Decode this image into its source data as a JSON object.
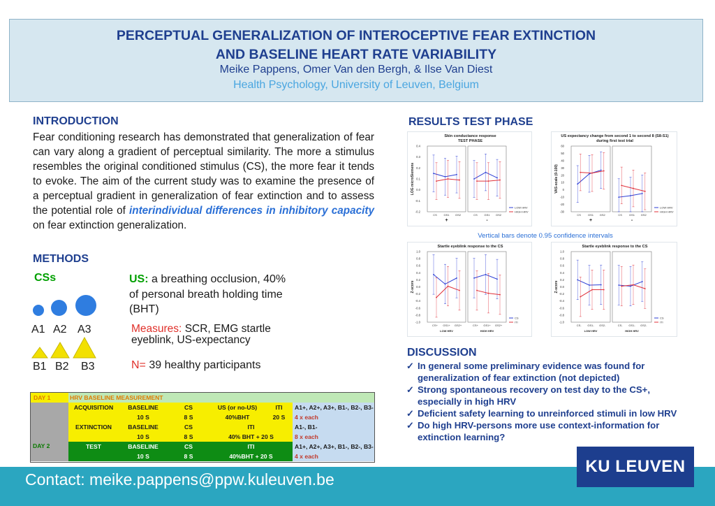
{
  "header": {
    "title_line1": "PERCEPTUAL GENERALIZATION OF INTEROCEPTIVE FEAR EXTINCTION",
    "title_line2": "AND BASELINE HEART RATE VARIABILITY",
    "authors": "Meike Pappens,  Omer Van den Bergh, & Ilse Van Diest",
    "affiliation": "Health Psychology, University of Leuven, Belgium"
  },
  "introduction": {
    "title": "INTRODUCTION",
    "text_before": "Fear conditioning research has demonstrated that generalization of fear can vary along a gradient of perceptual similarity. The more a stimulus resembles the original conditioned stimulus (CS), the more fear it tends to evoke. The aim of the current study was to examine the presence of a perceptual gradient in generalization of fear extinction and to assess the potential role of",
    "emphasis": "interindividual differences in inhibitory capacity",
    "text_after": "on fear extinction generalization."
  },
  "methods": {
    "title": "METHODS",
    "cs_label": "CSs",
    "a_labels": [
      "A1",
      "A2",
      "A3"
    ],
    "b_labels": [
      "B1",
      "B2",
      "B3"
    ],
    "us_label": "US:",
    "us_text": "a breathing occlusion, 40% of personal breath holding time (BHT)",
    "measures_label": "Measures:",
    "measures_text": "SCR, EMG startle eyeblink, US-expectancy",
    "n_label": "N=",
    "n_text": "39 healthy participants",
    "colors": {
      "green": "#00a000",
      "red": "#e0302a",
      "blue": "#2f7de0",
      "yellow": "#f2e000"
    }
  },
  "schedule": {
    "day1": "DAY 1",
    "hrv_title": "HRV BASELINE MEASUREMENT",
    "acq_row1": [
      "ACQUISITION",
      "BASELINE",
      "CS",
      "US (or no-US)",
      "ITI"
    ],
    "acq_row2": [
      "10 S",
      "8 S",
      "40%BHT",
      "20 S"
    ],
    "acq_stim": "A1+, A2+, A3+, B1-, B2-, B3-",
    "acq_each": "4 x each",
    "ext_row1": [
      "EXTINCTION",
      "BASELINE",
      "CS",
      "ITI"
    ],
    "ext_row2": [
      "10 S",
      "8 S",
      "40% BHT + 20 S"
    ],
    "ext_stim": "A1-, B1-",
    "ext_each": "8 x each",
    "day2": "DAY 2",
    "test_row1": [
      "TEST",
      "BASELINE",
      "CS",
      "ITI"
    ],
    "test_row2": [
      "10 S",
      "8 S",
      "40%BHT + 20 S"
    ],
    "test_stim": "A1+, A2+, A3+, B1-, B2-, B3-",
    "test_each": "4 x each"
  },
  "results": {
    "title": "RESULTS TEST PHASE",
    "note": "Vertical bars denote 0.95 confidence intervals"
  },
  "chart_data": [
    {
      "type": "line",
      "title": "Skin conductance response",
      "subtitle": "TEST PHASE",
      "ylabel": "LOG microSiemens",
      "ylim": [
        -0.2,
        0.4
      ],
      "yticks": [
        "0.4",
        "0.3",
        "0.2",
        "0.1",
        "0.0",
        "-0.1",
        "-0.2"
      ],
      "panels": [
        {
          "categories": [
            "CS",
            "GS1",
            "GS2"
          ],
          "label": "+",
          "series": [
            {
              "name": "LOW HRV",
              "values": [
                0.15,
                0.12,
                0.14
              ]
            },
            {
              "name": "HIGH HRV",
              "values": [
                0.08,
                0.1,
                0.09
              ]
            }
          ]
        },
        {
          "categories": [
            "CS",
            "GS1",
            "GS2"
          ],
          "label": "-",
          "series": [
            {
              "name": "LOW HRV",
              "values": [
                0.1,
                0.16,
                0.11
              ]
            },
            {
              "name": "HIGH HRV",
              "values": [
                0.08,
                0.08,
                0.09
              ]
            }
          ]
        }
      ],
      "legend": [
        "LOW HRV",
        "HIGH HRV"
      ]
    },
    {
      "type": "line",
      "title": "US expectancy change from second 1 to second 8 (S8-S1)",
      "subtitle": "during first test trial",
      "ylabel": "VAS-scale (0-100)",
      "ylim": [
        -30,
        60
      ],
      "yticks": [
        "60",
        "50",
        "40",
        "30",
        "20",
        "10",
        "0",
        "-10",
        "-20",
        "-30"
      ],
      "panels": [
        {
          "categories": [
            "CS",
            "GS1",
            "GS2"
          ],
          "label": "+",
          "series": [
            {
              "name": "LOW HRV",
              "values": [
                8,
                22,
                27
              ]
            },
            {
              "name": "HIGH HRV",
              "values": [
                24,
                23,
                26
              ]
            }
          ]
        },
        {
          "categories": [
            "CS",
            "GS1",
            "GS2"
          ],
          "label": "-",
          "series": [
            {
              "name": "LOW HRV",
              "values": [
                -10,
                -8,
                -5
              ]
            },
            {
              "name": "HIGH HRV",
              "values": [
                6,
                2,
                -2
              ]
            }
          ]
        }
      ],
      "legend": [
        "LOW HRV",
        "HIGH HRV"
      ]
    },
    {
      "type": "line",
      "title": "Startle eyeblink response to the CS",
      "ylabel": "Z-score",
      "ylim": [
        -1.0,
        1.0
      ],
      "yticks": [
        "1.0",
        "0.8",
        "0.6",
        "0.4",
        "0.2",
        "0.0",
        "-0.2",
        "-0.4",
        "-0.6",
        "-0.8",
        "-1.0"
      ],
      "panels": [
        {
          "categories": [
            "CS+",
            "GS1+",
            "GS2+"
          ],
          "label": "LOW HRV",
          "series": [
            {
              "name": "CS",
              "values": [
                0.35,
                0.08,
                0.25
              ]
            },
            {
              "name": "ITI",
              "values": [
                -0.3,
                0.02,
                -0.1
              ]
            }
          ]
        },
        {
          "categories": [
            "CS+",
            "GS1+",
            "GS2+"
          ],
          "label": "HIGH HRV",
          "series": [
            {
              "name": "CS",
              "values": [
                0.25,
                0.35,
                0.22
              ]
            },
            {
              "name": "ITI",
              "values": [
                -0.1,
                -0.18,
                -0.22
              ]
            }
          ]
        }
      ],
      "legend": [
        "CS",
        "ITI"
      ]
    },
    {
      "type": "line",
      "title": "Startle eyeblink response to the CS",
      "ylabel": "Z-score",
      "ylim": [
        -1.0,
        1.0
      ],
      "yticks": [
        "1.0",
        "0.8",
        "0.6",
        "0.4",
        "0.2",
        "0.0",
        "-0.2",
        "-0.4",
        "-0.6",
        "-0.8",
        "-1.0"
      ],
      "panels": [
        {
          "categories": [
            "CS-",
            "GS1-",
            "GS2-"
          ],
          "label": "LOW HRV",
          "series": [
            {
              "name": "CS",
              "values": [
                0.2,
                0.05,
                0.06
              ]
            },
            {
              "name": "ITI",
              "values": [
                -0.28,
                -0.08,
                -0.08
              ]
            }
          ]
        },
        {
          "categories": [
            "CS-",
            "GS1-",
            "GS2-"
          ],
          "label": "HIGH HRV",
          "series": [
            {
              "name": "CS",
              "values": [
                0.05,
                0.02,
                0.15
              ]
            },
            {
              "name": "ITI",
              "values": [
                0.02,
                0.06,
                -0.05
              ]
            }
          ]
        }
      ],
      "legend": [
        "CS",
        "ITI"
      ]
    }
  ],
  "discussion": {
    "title": "DISCUSSION",
    "items": [
      "In general some preliminary evidence was found for generalization of fear extinction (not depicted)",
      "Strong spontaneous recovery on test day to the CS+, especially in high HRV",
      "Deficient safety learning to unreinforced stimuli in low HRV",
      "Do high HRV-persons more use context-information for extinction learning?"
    ]
  },
  "footer": {
    "contact": "Contact: meike.pappens@ppw.kuleuven.be",
    "logo": "KU LEUVEN"
  }
}
